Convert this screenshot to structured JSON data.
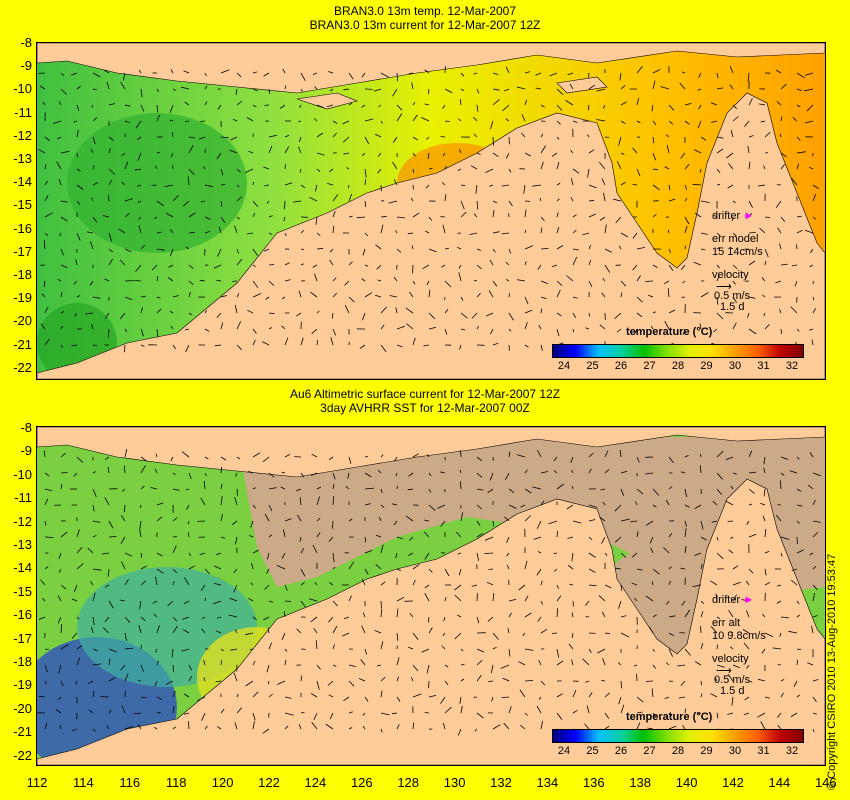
{
  "top_panel": {
    "title_line1": "BRAN3.0 13m temp. 12-Mar-2007",
    "title_line2": "BRAN3.0 13m current for 12-Mar-2007 12Z",
    "drifter_label": "drifter",
    "err_label": "err model",
    "err_values": "15 14cm/s",
    "velocity_label": "velocity",
    "velocity_scale": "0.5 m/s",
    "velocity_time": "1.5 d",
    "colorbar_title": "temperature (°C)"
  },
  "bottom_panel": {
    "title_line1": "Au6 Altimetric surface current for 12-Mar-2007 12Z",
    "title_line2": "3day AVHRR SST for 12-Mar-2007 00Z",
    "drifter_label": "drifter",
    "err_label": "err alt",
    "err_values": "10 9.8cm/s",
    "velocity_label": "velocity",
    "velocity_scale": "0.5 m/s",
    "velocity_time": "1.5 d",
    "colorbar_title": "temperature (°C)"
  },
  "latitude_ticks": [
    "-8",
    "-9",
    "-10",
    "-11",
    "-12",
    "-13",
    "-14",
    "-15",
    "-16",
    "-17",
    "-18",
    "-19",
    "-20",
    "-21",
    "-22"
  ],
  "longitude_ticks": [
    "112",
    "114",
    "116",
    "118",
    "120",
    "122",
    "124",
    "126",
    "128",
    "130",
    "132",
    "134",
    "136",
    "138",
    "140",
    "142",
    "144",
    "146"
  ],
  "colorbar_ticks": [
    "24",
    "25",
    "26",
    "27",
    "28",
    "29",
    "30",
    "31",
    "32"
  ],
  "copyright": "© Copyright CSIRO 2010   13-Aug-2010 19:53:47",
  "colors": {
    "background": "#ffff00",
    "land": "#ffcc99",
    "missing_data": "#ccaa88",
    "drifter": "#ff00ff"
  }
}
